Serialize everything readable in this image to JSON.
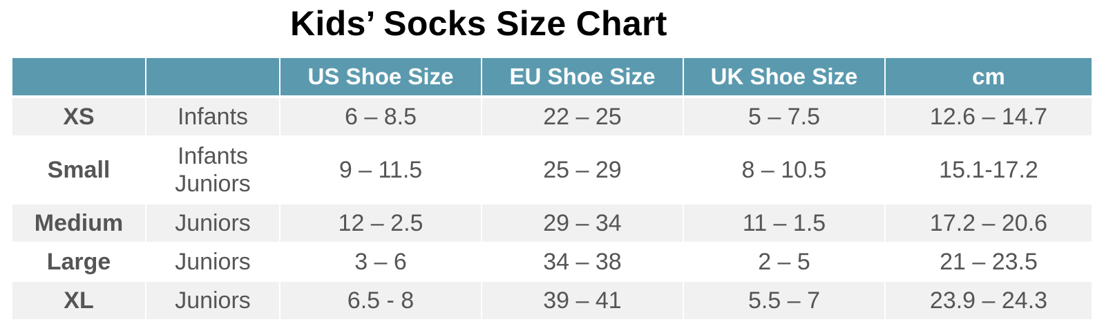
{
  "title": "Kids’ Socks Size Chart",
  "colors": {
    "header_bg": "#5b9aae",
    "header_text": "#ffffff",
    "row_shade": "#f1f1f1",
    "row_plain": "#ffffff",
    "body_text": "#555555",
    "title_text": "#000000"
  },
  "table": {
    "headers": [
      "",
      "",
      "US Shoe Size",
      "EU Shoe Size",
      "UK Shoe Size",
      "cm"
    ],
    "rows": [
      {
        "size": "XS",
        "ages": [
          "Infants"
        ],
        "us": "6 – 8.5",
        "eu": "22 – 25",
        "uk": "5 – 7.5",
        "cm": "12.6 – 14.7"
      },
      {
        "size": "Small",
        "ages": [
          "Infants",
          "Juniors"
        ],
        "us": "9 – 11.5",
        "eu": "25 – 29",
        "uk": "8 – 10.5",
        "cm": "15.1-17.2"
      },
      {
        "size": "Medium",
        "ages": [
          "Juniors"
        ],
        "us": "12 – 2.5",
        "eu": "29 – 34",
        "uk": "11 – 1.5",
        "cm": "17.2 – 20.6"
      },
      {
        "size": "Large",
        "ages": [
          "Juniors"
        ],
        "us": "3 – 6",
        "eu": "34 – 38",
        "uk": "2 – 5",
        "cm": "21 – 23.5"
      },
      {
        "size": "XL",
        "ages": [
          "Juniors"
        ],
        "us": "6.5 - 8",
        "eu": "39 – 41",
        "uk": "5.5 – 7",
        "cm": "23.9 – 24.3"
      }
    ]
  }
}
